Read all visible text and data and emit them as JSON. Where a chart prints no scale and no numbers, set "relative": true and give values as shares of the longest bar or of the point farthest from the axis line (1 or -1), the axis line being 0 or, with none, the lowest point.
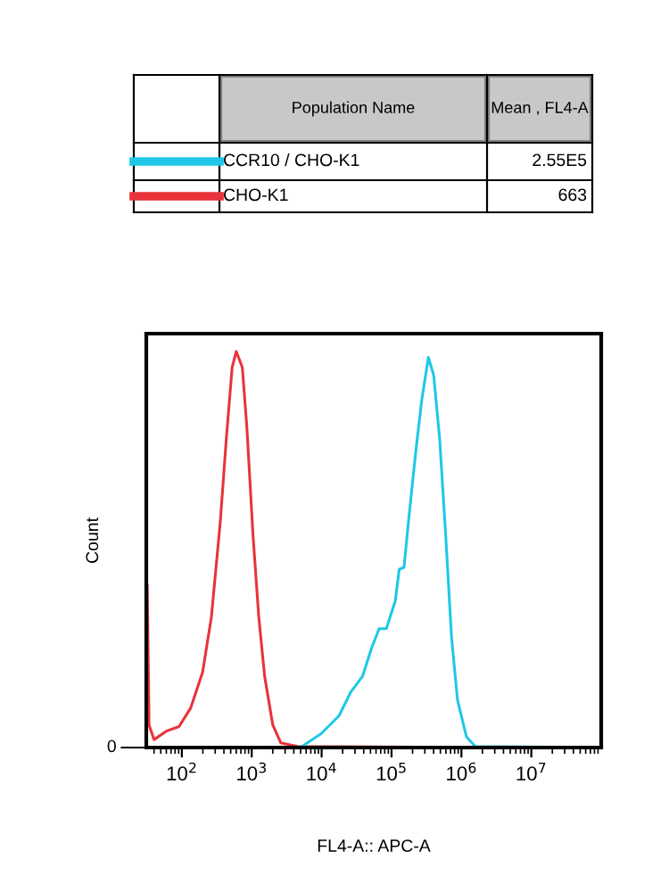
{
  "chart_data": {
    "type": "line",
    "xlabel": "FL4-A:: APC-A",
    "ylabel": "Count",
    "relative": true,
    "log": "x",
    "legend": "top",
    "annotations": [
      "Population Name",
      "Mean , FL4-A",
      "2.55E5",
      "663",
      "0"
    ],
    "xlim": [
      31,
      100000000
    ],
    "xticks": [
      {
        "value": 100,
        "label": "10$^{2}$"
      },
      {
        "value": 1000,
        "label": "10$^{3}$"
      },
      {
        "value": 10000,
        "label": "10$^{4}$"
      },
      {
        "value": 100000,
        "label": "10$^{5}$"
      },
      {
        "value": 1000000,
        "label": "10$^{6}$"
      },
      {
        "value": 10000000,
        "label": "10$^{7}$"
      }
    ],
    "series": [
      {
        "name": "CHO-K1",
        "color": "#e8333a",
        "x": [
          32,
          34,
          40,
          61,
          91,
          134,
          198,
          265,
          355,
          433,
          525,
          601,
          733,
          851,
          1040,
          1260,
          1530,
          2000,
          2600,
          4510,
          1290000
        ],
        "values": [
          0.41,
          0.057,
          0.02,
          0.042,
          0.053,
          0.1,
          0.19,
          0.33,
          0.57,
          0.78,
          0.96,
          1.0,
          0.96,
          0.81,
          0.54,
          0.33,
          0.18,
          0.057,
          0.012,
          0.003,
          0.0
        ]
      },
      {
        "name": "CCR10 / CHO-K1",
        "color": "#1ec8e6",
        "x": [
          32,
          4960,
          9820,
          17700,
          26100,
          38500,
          51600,
          66500,
          84300,
          113000,
          129000,
          151000,
          177000,
          223000,
          272000,
          337000,
          401000,
          488000,
          594000,
          721000,
          879000,
          1180000,
          1580000,
          95000000
        ],
        "values": [
          0.0,
          0.0,
          0.035,
          0.08,
          0.14,
          0.18,
          0.25,
          0.3,
          0.3,
          0.37,
          0.45,
          0.455,
          0.58,
          0.75,
          0.88,
          0.985,
          0.94,
          0.78,
          0.54,
          0.28,
          0.12,
          0.027,
          0.003,
          0.0
        ]
      }
    ]
  }
}
